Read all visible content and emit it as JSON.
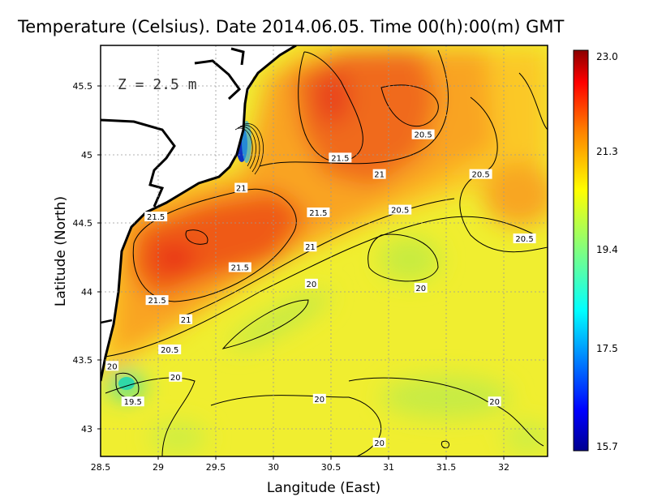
{
  "title": "Temperature (Celsius). Date 2014.06.05. Time 00(h):00(m)  GMT",
  "depth_label": "Z = 2.5 m",
  "x_axis": {
    "label": "Langitude (East)",
    "range": [
      28.5,
      32.4
    ],
    "ticks": [
      "28.5",
      "29",
      "29.5",
      "30",
      "30.5",
      "31",
      "31.5",
      "32"
    ]
  },
  "y_axis": {
    "label": "Latitude (North)",
    "range": [
      42.8,
      45.8
    ],
    "ticks": [
      "43",
      "43.5",
      "44",
      "44.5",
      "45",
      "45.5"
    ]
  },
  "colorbar": {
    "min": 15.7,
    "max": 23.0,
    "ticks": [
      "23.0",
      "21.3",
      "19.4",
      "17.5",
      "15.7"
    ],
    "colors": [
      "#00008f",
      "#0000ff",
      "#00ffff",
      "#80ff80",
      "#ffff00",
      "#ff8000",
      "#ff0000",
      "#8b0000"
    ]
  },
  "contour_labels": [
    {
      "text": "20.5",
      "lon": 31.3,
      "lat": 45.15
    },
    {
      "text": "21.5",
      "lon": 30.58,
      "lat": 44.98
    },
    {
      "text": "21",
      "lon": 30.92,
      "lat": 44.86
    },
    {
      "text": "20.5",
      "lon": 31.8,
      "lat": 44.86
    },
    {
      "text": "21",
      "lon": 29.72,
      "lat": 44.76
    },
    {
      "text": "21.5",
      "lon": 28.98,
      "lat": 44.55
    },
    {
      "text": "21.5",
      "lon": 30.39,
      "lat": 44.58
    },
    {
      "text": "20.5",
      "lon": 31.1,
      "lat": 44.6
    },
    {
      "text": "20.5",
      "lon": 32.18,
      "lat": 44.39
    },
    {
      "text": "21",
      "lon": 30.32,
      "lat": 44.33
    },
    {
      "text": "21.5",
      "lon": 29.71,
      "lat": 44.18
    },
    {
      "text": "20",
      "lon": 30.33,
      "lat": 44.06
    },
    {
      "text": "20",
      "lon": 31.28,
      "lat": 44.03
    },
    {
      "text": "21.5",
      "lon": 28.99,
      "lat": 43.94
    },
    {
      "text": "21",
      "lon": 29.24,
      "lat": 43.8
    },
    {
      "text": "20.5",
      "lon": 29.1,
      "lat": 43.58
    },
    {
      "text": "20",
      "lon": 28.6,
      "lat": 43.46
    },
    {
      "text": "20",
      "lon": 29.15,
      "lat": 43.38
    },
    {
      "text": "19.5",
      "lon": 28.78,
      "lat": 43.2
    },
    {
      "text": "20",
      "lon": 30.4,
      "lat": 43.22
    },
    {
      "text": "20",
      "lon": 31.92,
      "lat": 43.2
    },
    {
      "text": "20",
      "lon": 30.92,
      "lat": 42.9
    }
  ]
}
